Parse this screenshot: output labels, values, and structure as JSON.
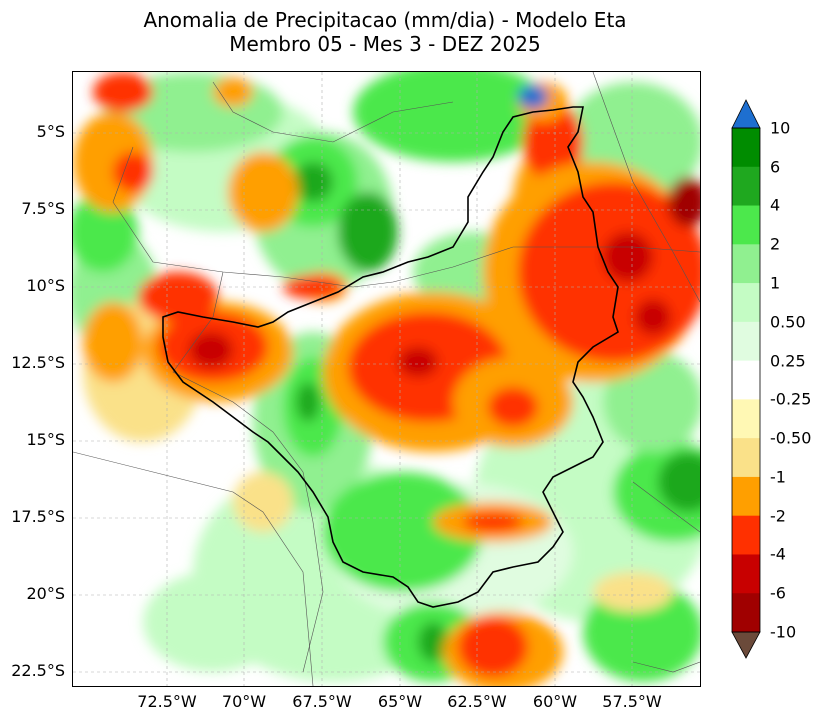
{
  "title": {
    "line1": "Anomalia de Precipitacao (mm/dia) - Modelo Eta",
    "line2": "Membro 05 - Mes 3 - DEZ 2025"
  },
  "axes": {
    "lat_ticks": [
      "5°S",
      "7.5°S",
      "10°S",
      "12.5°S",
      "15°S",
      "17.5°S",
      "20°S",
      "22.5°S"
    ],
    "lon_ticks": [
      "72.5°W",
      "70°W",
      "67.5°W",
      "65°W",
      "62.5°W",
      "60°W",
      "57.5°W"
    ]
  },
  "colorbar": {
    "labels": [
      "10",
      "6",
      "4",
      "2",
      "1",
      "0.50",
      "0.25",
      "-0.25",
      "-0.50",
      "-1",
      "-2",
      "-4",
      "-6",
      "-10"
    ],
    "colors": [
      "#005a9c",
      "#008c00",
      "#1fa81f",
      "#4ce84c",
      "#90f090",
      "#c4fcc4",
      "#e0fce0",
      "#ffffff",
      "#fff8b4",
      "#fae189",
      "#ff9f00",
      "#ff3000",
      "#c80000",
      "#a00000",
      "#6b4a3a"
    ],
    "extend_top_color": "#1e6fd0",
    "extend_bottom_color": "#6b4a3a"
  },
  "legend_colors": {
    "dark_green": "#008c00",
    "green": "#1fa81f",
    "light_green": "#4ce84c",
    "pale_green": "#90f090",
    "very_pale_green": "#c4fcc4",
    "faint_green": "#e0fce0",
    "white": "#ffffff",
    "pale_yellow": "#fff8b4",
    "yellow": "#fae189",
    "orange": "#ff9f00",
    "red_orange": "#ff3000",
    "red": "#c80000",
    "dark_red": "#a00000",
    "blue": "#1e6fd0"
  }
}
